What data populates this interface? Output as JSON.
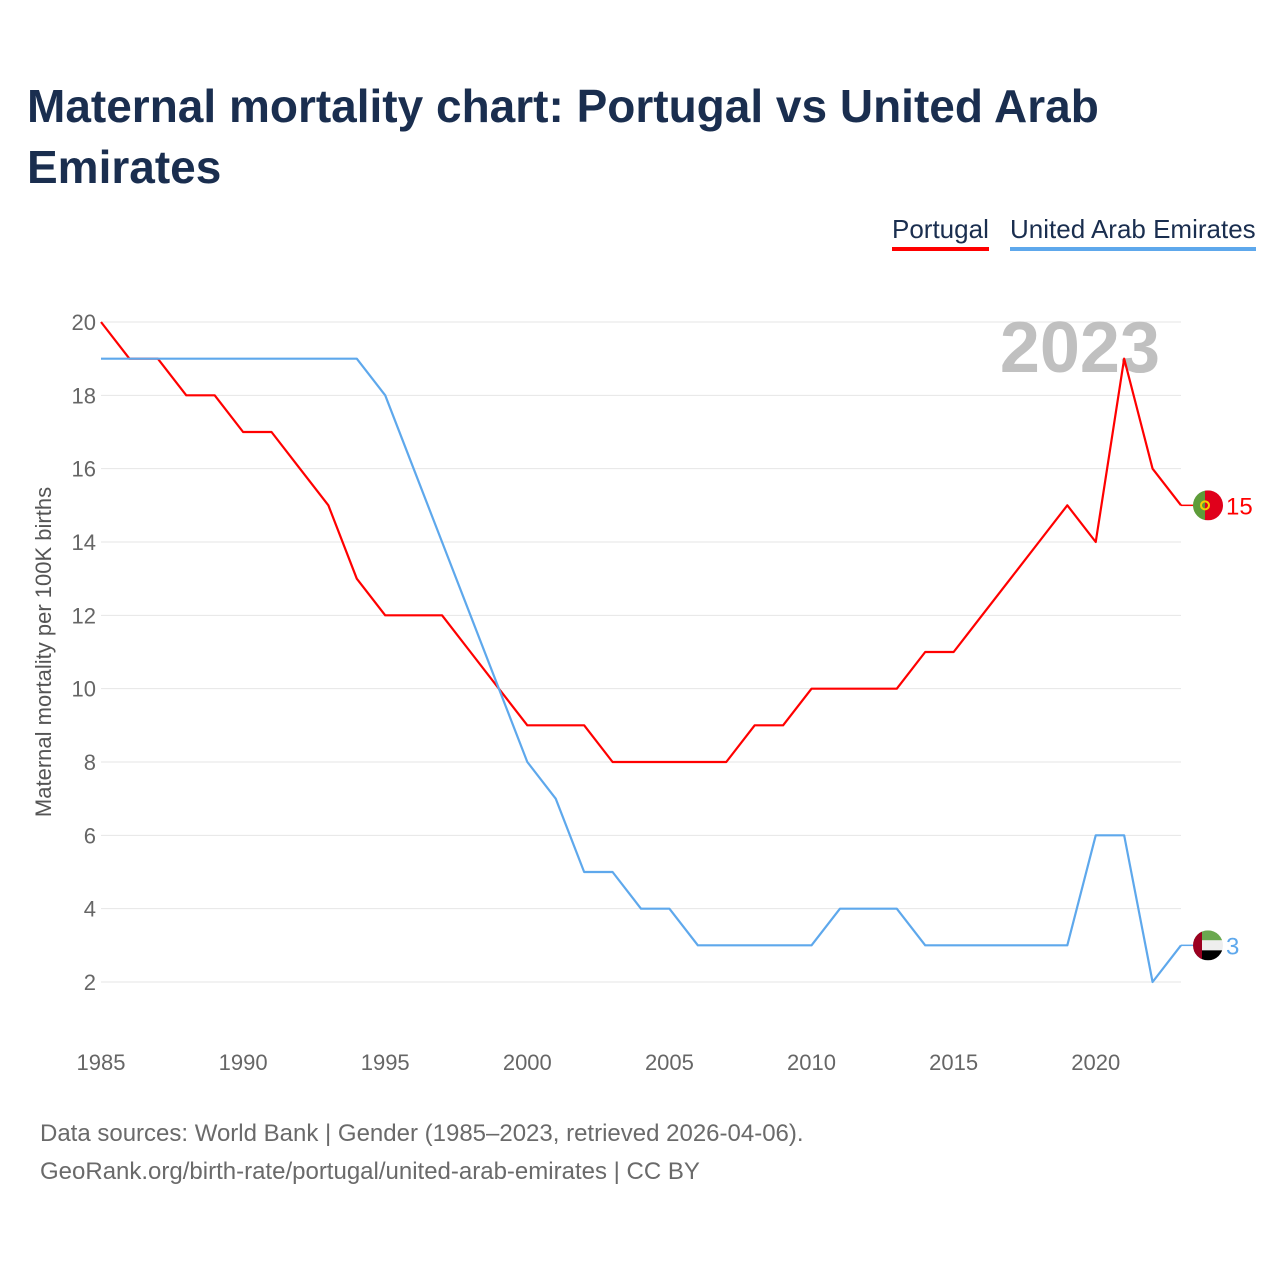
{
  "title": "Maternal mortality chart: Portugal vs United Arab Emirates",
  "footer": {
    "line1": "Data sources: World Bank | Gender (1985–2023, retrieved 2026-04-06).",
    "line2": "GeoRank.org/birth-rate/portugal/united-arab-emirates | CC BY"
  },
  "chart_data": {
    "type": "line",
    "title": "Maternal mortality chart: Portugal vs United Arab Emirates",
    "xlabel": "",
    "ylabel": "Maternal mortality per 100K births",
    "year_label": "2023",
    "x": [
      1985,
      1986,
      1987,
      1988,
      1989,
      1990,
      1991,
      1992,
      1993,
      1994,
      1995,
      1996,
      1997,
      1998,
      1999,
      2000,
      2001,
      2002,
      2003,
      2004,
      2005,
      2006,
      2007,
      2008,
      2009,
      2010,
      2011,
      2012,
      2013,
      2014,
      2015,
      2016,
      2017,
      2018,
      2019,
      2020,
      2021,
      2022,
      2023
    ],
    "xlim": [
      1985,
      2023
    ],
    "ylim": [
      2,
      20
    ],
    "xticks": [
      "1985",
      "1990",
      "1995",
      "2000",
      "2005",
      "2010",
      "2015",
      "2020"
    ],
    "yticks": [
      "2",
      "4",
      "6",
      "8",
      "10",
      "12",
      "14",
      "16",
      "18",
      "20"
    ],
    "grid": true,
    "legend_placement": "top-right",
    "series": [
      {
        "name": "Portugal",
        "color": "#ff0000",
        "end_label": "15",
        "flag": "portugal-flag",
        "values": [
          20,
          19,
          19,
          18,
          18,
          17,
          17,
          16,
          15,
          13,
          12,
          12,
          12,
          11,
          10,
          9,
          9,
          9,
          8,
          8,
          8,
          8,
          8,
          9,
          9,
          10,
          10,
          10,
          10,
          11,
          11,
          12,
          13,
          14,
          15,
          14,
          19,
          16,
          15
        ]
      },
      {
        "name": "United Arab Emirates",
        "color": "#5ea8ec",
        "end_label": "3",
        "flag": "uae-flag",
        "values": [
          19,
          19,
          19,
          19,
          19,
          19,
          19,
          19,
          19,
          19,
          18,
          16,
          14,
          12,
          10,
          8,
          7,
          5,
          5,
          4,
          4,
          3,
          3,
          3,
          3,
          3,
          4,
          4,
          4,
          3,
          3,
          3,
          3,
          3,
          3,
          6,
          6,
          2,
          3
        ]
      }
    ]
  }
}
